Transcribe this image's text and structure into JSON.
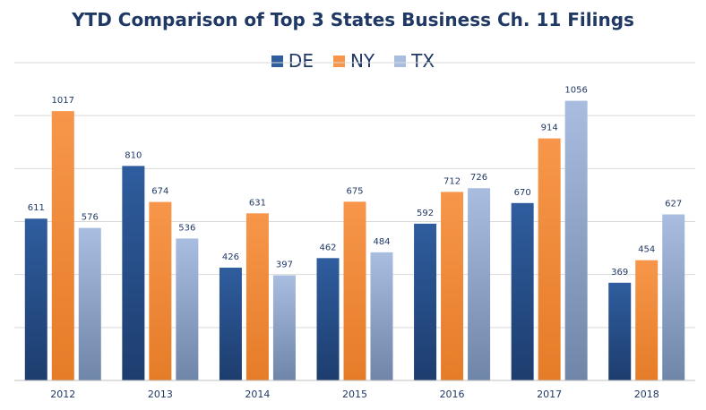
{
  "chart_data": {
    "type": "bar",
    "title": "YTD Comparison of Top 3 States Business Ch. 11 Filings",
    "categories": [
      "2012",
      "2013",
      "2014",
      "2015",
      "2016",
      "2017",
      "2018"
    ],
    "series": [
      {
        "name": "DE",
        "values": [
          611,
          810,
          426,
          462,
          592,
          670,
          369
        ],
        "color": "#2f5d9e",
        "color_dark": "#1d3d6e"
      },
      {
        "name": "NY",
        "values": [
          1017,
          674,
          631,
          675,
          712,
          914,
          454
        ],
        "color": "#f7964a",
        "color_dark": "#e57c28"
      },
      {
        "name": "TX",
        "values": [
          576,
          536,
          397,
          484,
          726,
          1056,
          627
        ],
        "color": "#a9bde0",
        "color_dark": "#6f86a8"
      }
    ],
    "xlabel": "",
    "ylabel": "",
    "ylim": [
      0,
      1200
    ],
    "grid": true,
    "legend_position": "top-center",
    "data_label_color": "#1f3864"
  }
}
